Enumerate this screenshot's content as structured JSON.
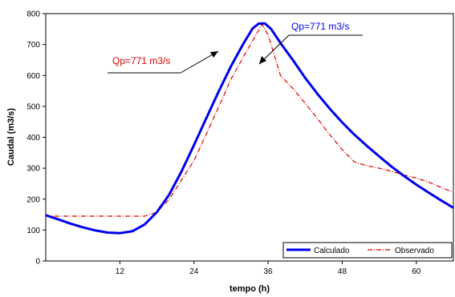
{
  "chart_data": {
    "type": "line",
    "title": "",
    "xlabel": "tempo (h)",
    "ylabel": "Caudal (m3/s)",
    "xlim": [
      0,
      66
    ],
    "ylim": [
      0,
      800
    ],
    "xticks": [
      12,
      24,
      36,
      48,
      60
    ],
    "yticks": [
      0,
      100,
      200,
      300,
      400,
      500,
      600,
      700,
      800
    ],
    "grid": false,
    "legend_position": "bottom-right",
    "series": [
      {
        "name": "Calculado",
        "color": "#0000ee",
        "style": "solid-thick",
        "points": [
          [
            0,
            148
          ],
          [
            2,
            135
          ],
          [
            4,
            121
          ],
          [
            6,
            109
          ],
          [
            8,
            99
          ],
          [
            10,
            92
          ],
          [
            12,
            90
          ],
          [
            14,
            96
          ],
          [
            16,
            118
          ],
          [
            18,
            158
          ],
          [
            20,
            215
          ],
          [
            22,
            290
          ],
          [
            24,
            375
          ],
          [
            26,
            462
          ],
          [
            28,
            548
          ],
          [
            30,
            630
          ],
          [
            32,
            703
          ],
          [
            33.5,
            752
          ],
          [
            34.5,
            768
          ],
          [
            35.5,
            768
          ],
          [
            36.5,
            750
          ],
          [
            38,
            705
          ],
          [
            40,
            650
          ],
          [
            42,
            592
          ],
          [
            44,
            540
          ],
          [
            46,
            492
          ],
          [
            48,
            448
          ],
          [
            50,
            408
          ],
          [
            52,
            372
          ],
          [
            54,
            338
          ],
          [
            56,
            305
          ],
          [
            58,
            275
          ],
          [
            60,
            247
          ],
          [
            62,
            221
          ],
          [
            64,
            196
          ],
          [
            66,
            172
          ]
        ]
      },
      {
        "name": "Observado",
        "color": "#dd0000",
        "style": "dash-dot",
        "points": [
          [
            0,
            145
          ],
          [
            4,
            145
          ],
          [
            8,
            145
          ],
          [
            12,
            145
          ],
          [
            16,
            145
          ],
          [
            18,
            158
          ],
          [
            20,
            200
          ],
          [
            22,
            262
          ],
          [
            24,
            325
          ],
          [
            26,
            410
          ],
          [
            28,
            498
          ],
          [
            30,
            588
          ],
          [
            32,
            660
          ],
          [
            34,
            730
          ],
          [
            35,
            765
          ],
          [
            36,
            732
          ],
          [
            38,
            600
          ],
          [
            40,
            558
          ],
          [
            42,
            510
          ],
          [
            44,
            460
          ],
          [
            46,
            408
          ],
          [
            48,
            360
          ],
          [
            50,
            320
          ],
          [
            52,
            308
          ],
          [
            54,
            300
          ],
          [
            56,
            290
          ],
          [
            58,
            278
          ],
          [
            60,
            268
          ],
          [
            62,
            255
          ],
          [
            64,
            238
          ],
          [
            66,
            222
          ]
        ]
      }
    ],
    "annotations": [
      {
        "text": "Qp=771 m3/s",
        "color": "#dd0000"
      },
      {
        "text": "Qp=771 m3/s",
        "color": "#0000ee"
      }
    ]
  }
}
